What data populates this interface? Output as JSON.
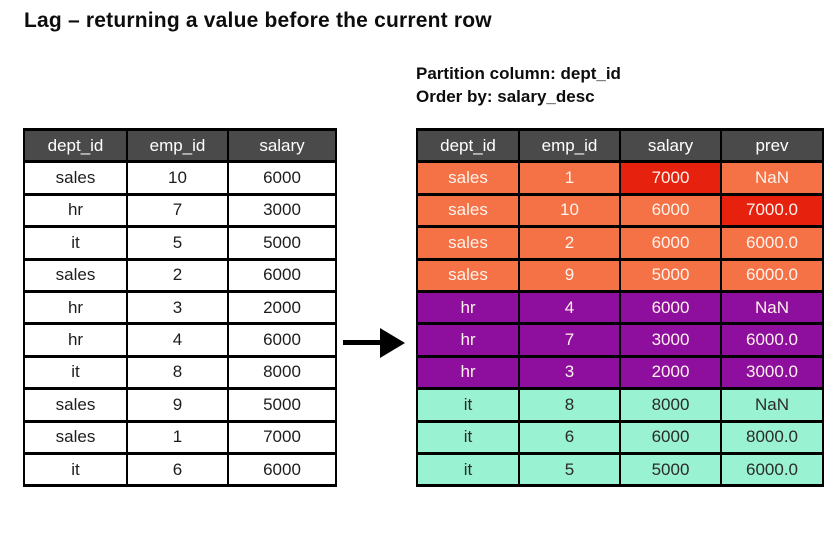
{
  "title": "Lag – returning a value before the current row",
  "annotation": {
    "partition": "Partition column: dept_id",
    "order_by": "Order by: salary_desc"
  },
  "colors": {
    "header_bg": "#4a4a4a",
    "header_text": "#ffffff",
    "sales_bg": "#f57146",
    "highlight_bg": "#e6220f",
    "hr_bg": "#8e0e9d",
    "it_bg": "#99f2d1",
    "border": "#000000",
    "light_text": "#fdf3ec",
    "dark_text": "#1d1d1d",
    "page_bg": "#ffffff"
  },
  "left_table": {
    "headers": [
      "dept_id",
      "emp_id",
      "salary"
    ],
    "rows": [
      [
        "sales",
        "10",
        "6000"
      ],
      [
        "hr",
        "7",
        "3000"
      ],
      [
        "it",
        "5",
        "5000"
      ],
      [
        "sales",
        "2",
        "6000"
      ],
      [
        "hr",
        "3",
        "2000"
      ],
      [
        "hr",
        "4",
        "6000"
      ],
      [
        "it",
        "8",
        "8000"
      ],
      [
        "sales",
        "9",
        "5000"
      ],
      [
        "sales",
        "1",
        "7000"
      ],
      [
        "it",
        "6",
        "6000"
      ]
    ]
  },
  "right_table": {
    "headers": [
      "dept_id",
      "emp_id",
      "salary",
      "prev"
    ],
    "rows": [
      {
        "cells": [
          "sales",
          "1",
          "7000",
          "NaN"
        ],
        "group": "sales",
        "highlight_cols": [
          2
        ]
      },
      {
        "cells": [
          "sales",
          "10",
          "6000",
          "7000.0"
        ],
        "group": "sales",
        "highlight_cols": [
          3
        ]
      },
      {
        "cells": [
          "sales",
          "2",
          "6000",
          "6000.0"
        ],
        "group": "sales",
        "highlight_cols": []
      },
      {
        "cells": [
          "sales",
          "9",
          "5000",
          "6000.0"
        ],
        "group": "sales",
        "highlight_cols": []
      },
      {
        "cells": [
          "hr",
          "4",
          "6000",
          "NaN"
        ],
        "group": "hr",
        "highlight_cols": []
      },
      {
        "cells": [
          "hr",
          "7",
          "3000",
          "6000.0"
        ],
        "group": "hr",
        "highlight_cols": []
      },
      {
        "cells": [
          "hr",
          "3",
          "2000",
          "3000.0"
        ],
        "group": "hr",
        "highlight_cols": []
      },
      {
        "cells": [
          "it",
          "8",
          "8000",
          "NaN"
        ],
        "group": "it",
        "highlight_cols": []
      },
      {
        "cells": [
          "it",
          "6",
          "6000",
          "8000.0"
        ],
        "group": "it",
        "highlight_cols": []
      },
      {
        "cells": [
          "it",
          "5",
          "5000",
          "6000.0"
        ],
        "group": "it",
        "highlight_cols": []
      }
    ]
  }
}
